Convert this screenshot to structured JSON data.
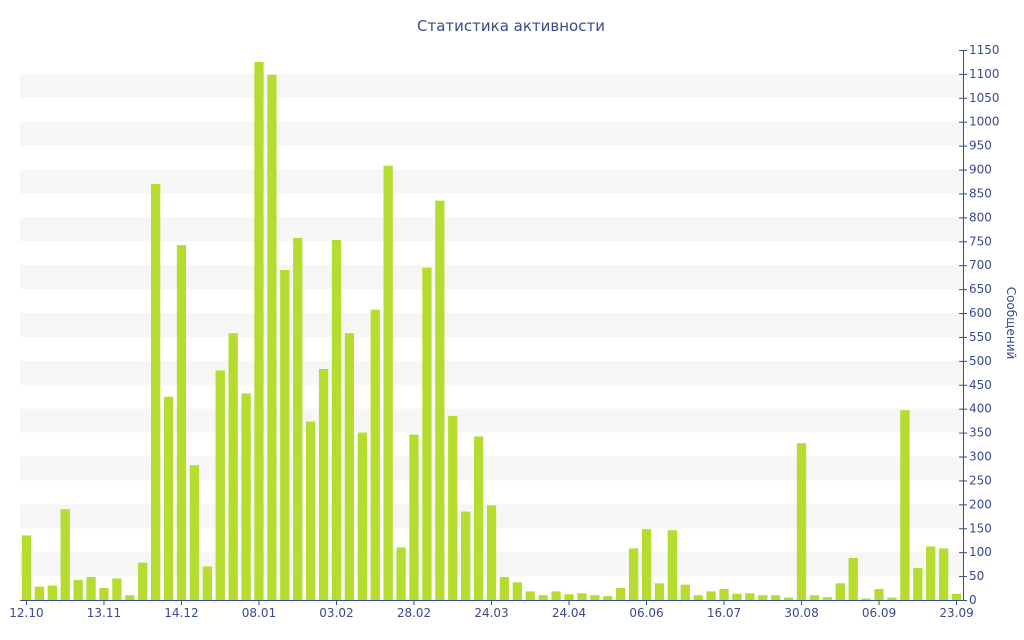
{
  "chart_data": {
    "type": "bar",
    "title": "Статистика активности",
    "ylabel": "Сообщений",
    "xlabel": "",
    "ylim": [
      0,
      1150
    ],
    "ytick_step": 50,
    "grid": "alternating horizontal bands",
    "y_axis_position": "right",
    "bar_color": "#b5dd2f",
    "band_color": "#f6f6f6",
    "text_color": "#3a4a8a",
    "axis_color": "#3a4a8a",
    "x_tick_labels": [
      {
        "label": "12.10",
        "index": 0
      },
      {
        "label": "13.11",
        "index": 6
      },
      {
        "label": "14.12",
        "index": 12
      },
      {
        "label": "08.01",
        "index": 18
      },
      {
        "label": "03.02",
        "index": 24
      },
      {
        "label": "28.02",
        "index": 30
      },
      {
        "label": "24.03",
        "index": 36
      },
      {
        "label": "24.04",
        "index": 42
      },
      {
        "label": "06.06",
        "index": 48
      },
      {
        "label": "16.07",
        "index": 54
      },
      {
        "label": "30.08",
        "index": 60
      },
      {
        "label": "06.09",
        "index": 66
      },
      {
        "label": "23.09",
        "index": 72
      }
    ],
    "values": [
      135,
      28,
      30,
      190,
      42,
      48,
      25,
      45,
      10,
      78,
      870,
      425,
      742,
      282,
      70,
      480,
      558,
      432,
      1125,
      1098,
      690,
      757,
      373,
      483,
      753,
      558,
      350,
      607,
      908,
      110,
      346,
      695,
      835,
      385,
      185,
      342,
      198,
      48,
      37,
      18,
      10,
      18,
      12,
      14,
      10,
      8,
      25,
      108,
      148,
      35,
      146,
      32,
      10,
      18,
      23,
      13,
      14,
      10,
      10,
      5,
      328,
      10,
      6,
      35,
      88,
      3,
      23,
      5,
      397,
      67,
      112,
      108,
      13
    ]
  }
}
